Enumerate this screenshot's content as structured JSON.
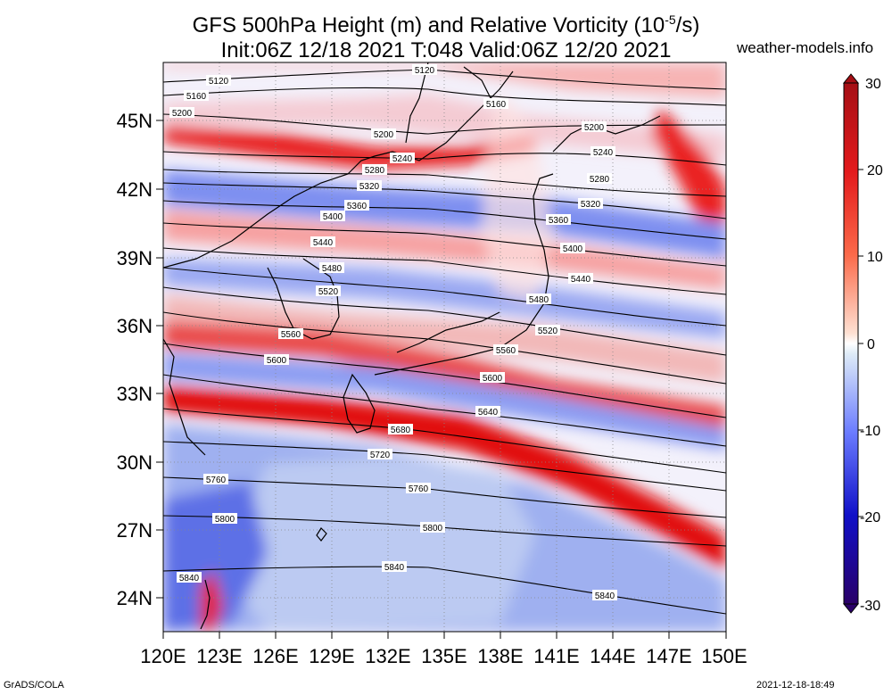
{
  "header": {
    "title_line1": "GFS 500hPa Height (m) and Relative Vorticity (10",
    "title_exp": "-5",
    "title_line1_end": "/s)",
    "title_line2": "Init:06Z 12/18 2021 T:048 Valid:06Z 12/20 2021",
    "site": "weather-models.info"
  },
  "footer": {
    "left": "GrADS/COLA",
    "right": "2021-12-18-18:49"
  },
  "map": {
    "lat_labels": [
      "45N",
      "42N",
      "39N",
      "36N",
      "33N",
      "30N",
      "27N",
      "24N"
    ],
    "lon_labels": [
      "120E",
      "123E",
      "126E",
      "129E",
      "132E",
      "135E",
      "138E",
      "141E",
      "144E",
      "147E",
      "150E"
    ],
    "contour_labels": [
      "5120",
      "5160",
      "5200",
      "5240",
      "5280",
      "5320",
      "5360",
      "5400",
      "5440",
      "5480",
      "5520",
      "5560",
      "5600",
      "5640",
      "5680",
      "5720",
      "5760",
      "5800",
      "5840"
    ]
  },
  "colorbar": {
    "ticks": [
      "30",
      "20",
      "10",
      "0",
      "-10",
      "-20",
      "-30"
    ],
    "colors": [
      "#b2182b",
      "#ef3b2c",
      "#fc9272",
      "#ffffff",
      "#9ecae1",
      "#3f51d8",
      "#2a0a8c"
    ]
  },
  "colors": {
    "positive": "#e8141a",
    "negative": "#3a4de0",
    "contour": "#000000"
  }
}
